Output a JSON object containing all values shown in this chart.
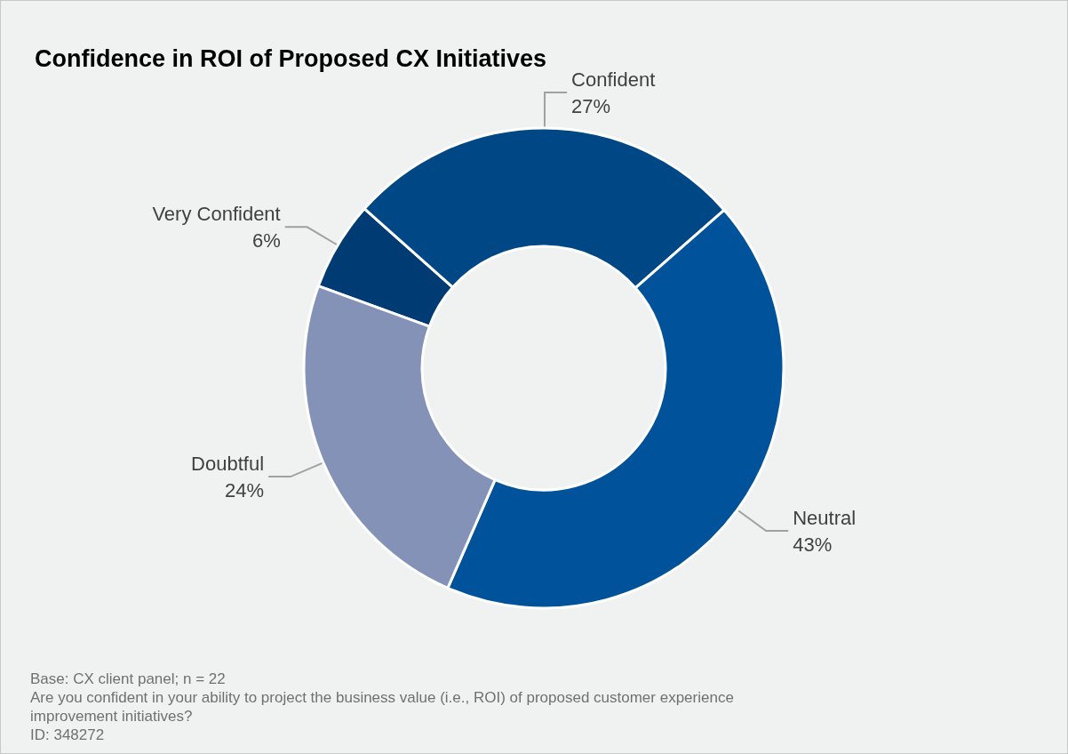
{
  "chart_data": {
    "type": "donut",
    "title": "Confidence in ROI of Proposed CX Initiatives",
    "categories": [
      "Very Confident",
      "Confident",
      "Neutral",
      "Doubtful"
    ],
    "values": [
      6,
      27,
      43,
      24
    ],
    "value_labels": [
      "6%",
      "27%",
      "43%",
      "24%"
    ],
    "colors": [
      "#003b73",
      "#004786",
      "#00529b",
      "#8492b8"
    ],
    "legend": false,
    "annotations": [
      "Base: CX client panel; n = 22",
      "Are you confident in your ability to project the business value (i.e., ROI) of proposed customer experience improvement initiatives?",
      "ID: 348272"
    ]
  }
}
